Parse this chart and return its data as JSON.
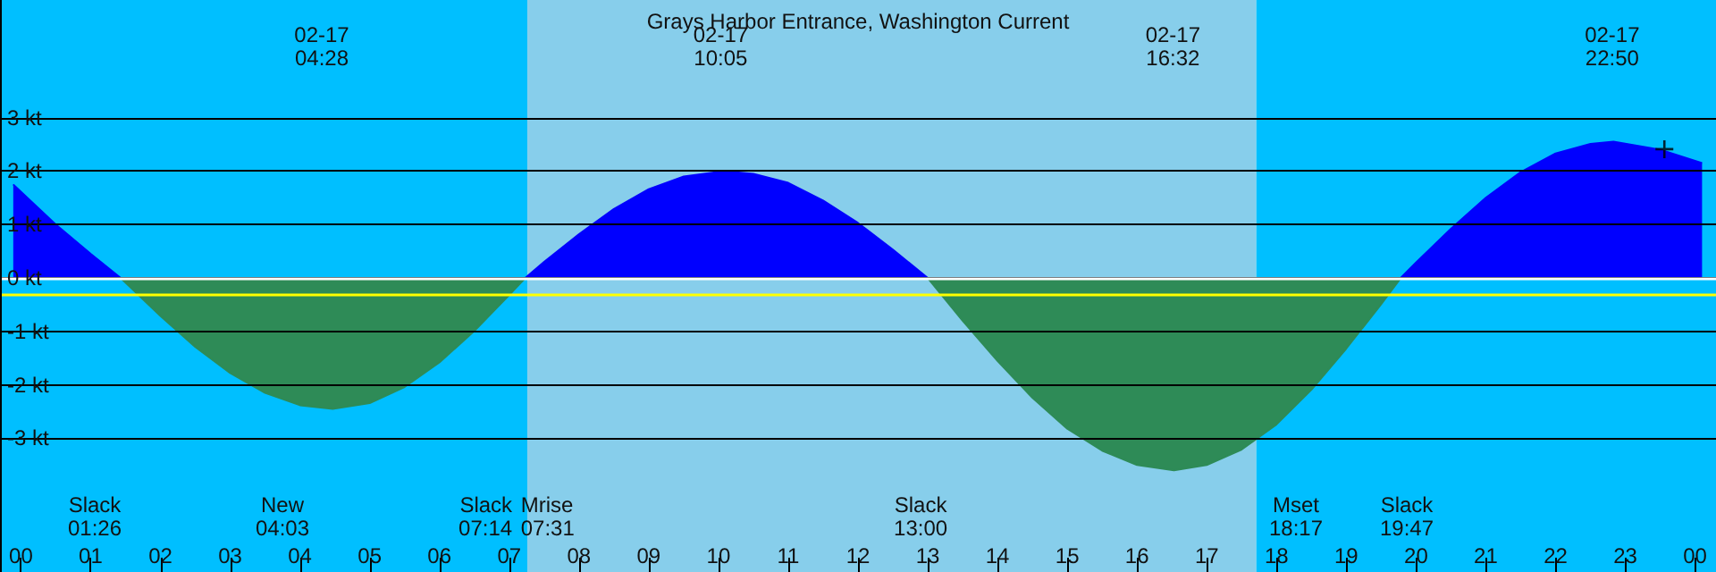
{
  "chart_data": {
    "type": "area",
    "title": "Grays Harbor Entrance, Washington Current",
    "xlim": [
      -0.3,
      24.3
    ],
    "xticks": [
      {
        "value": 0,
        "label": "00"
      },
      {
        "value": 1,
        "label": "01"
      },
      {
        "value": 2,
        "label": "02"
      },
      {
        "value": 3,
        "label": "03"
      },
      {
        "value": 4,
        "label": "04"
      },
      {
        "value": 5,
        "label": "05"
      },
      {
        "value": 6,
        "label": "06"
      },
      {
        "value": 7,
        "label": "07"
      },
      {
        "value": 8,
        "label": "08"
      },
      {
        "value": 9,
        "label": "09"
      },
      {
        "value": 10,
        "label": "10"
      },
      {
        "value": 11,
        "label": "11"
      },
      {
        "value": 12,
        "label": "12"
      },
      {
        "value": 13,
        "label": "13"
      },
      {
        "value": 14,
        "label": "14"
      },
      {
        "value": 15,
        "label": "15"
      },
      {
        "value": 16,
        "label": "16"
      },
      {
        "value": 17,
        "label": "17"
      },
      {
        "value": 18,
        "label": "18"
      },
      {
        "value": 19,
        "label": "19"
      },
      {
        "value": 20,
        "label": "20"
      },
      {
        "value": 21,
        "label": "21"
      },
      {
        "value": 22,
        "label": "22"
      },
      {
        "value": 23,
        "label": "23"
      },
      {
        "value": 24,
        "label": "00"
      }
    ],
    "ylim": [
      -5.5,
      5.2
    ],
    "yticks": [
      {
        "value": 3,
        "label": "3 kt"
      },
      {
        "value": 2,
        "label": "2 kt"
      },
      {
        "value": 1,
        "label": "1 kt"
      },
      {
        "value": 0,
        "label": "0 kt"
      },
      {
        "value": -1,
        "label": "-1 kt"
      },
      {
        "value": -2,
        "label": "-2 kt"
      },
      {
        "value": -3,
        "label": "-3 kt"
      }
    ],
    "grid": "y",
    "series": [
      {
        "color": "#0000ff",
        "x": [
          -0.11,
          0.5,
          1,
          1.43
        ],
        "values": [
          1.75,
          1.0,
          0.45,
          0
        ]
      },
      {
        "color": "#2e8b57",
        "x": [
          1.43,
          2,
          2.5,
          3,
          3.5,
          4,
          4.47,
          5,
          5.5,
          6,
          6.5,
          7,
          7.23
        ],
        "values": [
          0,
          -0.71,
          -1.29,
          -1.78,
          -2.15,
          -2.38,
          -2.45,
          -2.34,
          -2.04,
          -1.58,
          -0.99,
          -0.32,
          0
        ]
      },
      {
        "color": "#0000ff",
        "x": [
          7.23,
          7.5,
          8,
          8.5,
          9,
          9.5,
          10.08,
          10.5,
          11,
          11.5,
          12,
          12.5,
          13
        ],
        "values": [
          0,
          0.3,
          0.82,
          1.29,
          1.66,
          1.9,
          2.0,
          1.95,
          1.78,
          1.45,
          1.03,
          0.53,
          0
        ]
      },
      {
        "color": "#2e8b57",
        "x": [
          13,
          13.5,
          14,
          14.5,
          15,
          15.5,
          16,
          16.53,
          17,
          17.5,
          18,
          18.5,
          19,
          19.5,
          19.78
        ],
        "values": [
          0,
          -0.8,
          -1.55,
          -2.24,
          -2.82,
          -3.23,
          -3.5,
          -3.6,
          -3.5,
          -3.21,
          -2.74,
          -2.09,
          -1.32,
          -0.49,
          0
        ]
      },
      {
        "color": "#0000ff",
        "x": [
          19.78,
          20,
          20.5,
          21,
          21.5,
          22,
          22.5,
          22.83,
          23.5,
          24.1
        ],
        "values": [
          0,
          0.29,
          0.92,
          1.5,
          1.98,
          2.33,
          2.51,
          2.55,
          2.4,
          2.15
        ]
      },
      {
        "type": "scatter",
        "marker": "cross",
        "color": "#000000",
        "x": [
          23.56
        ],
        "values": [
          2.41
        ]
      }
    ],
    "bands": [
      {
        "axis": "x",
        "from": -0.3,
        "to": 7.26,
        "color": "#00bfff"
      },
      {
        "axis": "x",
        "from": 7.26,
        "to": 17.71,
        "color": "#87ceeb"
      },
      {
        "axis": "x",
        "from": 17.71,
        "to": 24.3,
        "color": "#00bfff"
      }
    ],
    "ref_lines": [
      {
        "axis": "y",
        "value": 0,
        "color": "#ffffff"
      },
      {
        "axis": "y",
        "value": -0.3,
        "color": "#ffff00"
      }
    ],
    "annotations": [
      "02-17\n04:28",
      "02-17\n10:05",
      "02-17\n16:32",
      "02-17\n22:50",
      "Slack\n01:26",
      "New\n04:03",
      "Slack\n07:14",
      "Mrise\n07:31",
      "Slack\n13:00",
      "Mset\n18:17",
      "Slack\n19:47"
    ]
  }
}
